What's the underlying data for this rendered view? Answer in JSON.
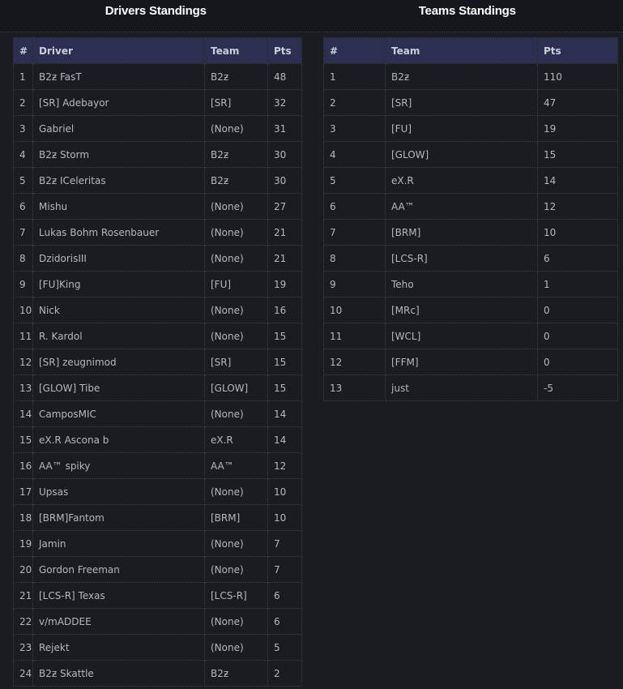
{
  "titles": {
    "drivers": "Drivers Standings",
    "teams": "Teams Standings"
  },
  "colors": {
    "page_background": "#1b1c22",
    "titlebar_background": "#16171c",
    "table_header_background": "#2b3053",
    "border_dotted": "#3d3e45",
    "title_text": "#ffffff",
    "cell_text": "#b6b8bc"
  },
  "drivers_table": {
    "columns": [
      "#",
      "Driver",
      "Team",
      "Pts"
    ],
    "rows": [
      [
        "1",
        "B2ƶ FasT",
        "B2ƶ",
        "48"
      ],
      [
        "2",
        "[SR] Adebayor",
        "[SR]",
        "32"
      ],
      [
        "3",
        "Gabriel",
        "(None)",
        "31"
      ],
      [
        "4",
        "B2ƶ Storm",
        "B2ƶ",
        "30"
      ],
      [
        "5",
        "B2ƶ ICeleritas",
        "B2ƶ",
        "30"
      ],
      [
        "6",
        "Mishu",
        "(None)",
        "27"
      ],
      [
        "7",
        "Lukas Bohm Rosenbauer",
        "(None)",
        "21"
      ],
      [
        "8",
        "DzidorisIII",
        "(None)",
        "21"
      ],
      [
        "9",
        "[FU]King",
        "[FU]",
        "19"
      ],
      [
        "10",
        "Nick",
        "(None)",
        "16"
      ],
      [
        "11",
        "R. Kardol",
        "(None)",
        "15"
      ],
      [
        "12",
        "[SR] zeugnimod",
        "[SR]",
        "15"
      ],
      [
        "13",
        "[GLOW] Tibe",
        "[GLOW]",
        "15"
      ],
      [
        "14",
        "CamposMIC",
        "(None)",
        "14"
      ],
      [
        "15",
        "eX.R Ascona b",
        "eX.R",
        "14"
      ],
      [
        "16",
        "AA™ spiky",
        "AA™",
        "12"
      ],
      [
        "17",
        "Upsas",
        "(None)",
        "10"
      ],
      [
        "18",
        "[BRM]Fantom",
        "[BRM]",
        "10"
      ],
      [
        "19",
        "Jamin",
        "(None)",
        "7"
      ],
      [
        "20",
        "Gordon Freeman",
        "(None)",
        "7"
      ],
      [
        "21",
        "[LCS-R] Texas",
        "[LCS-R]",
        "6"
      ],
      [
        "22",
        "v/mADDEE",
        "(None)",
        "6"
      ],
      [
        "23",
        "Rejekt",
        "(None)",
        "5"
      ],
      [
        "24",
        "B2ƶ Skattle",
        "B2ƶ",
        "2"
      ]
    ]
  },
  "teams_table": {
    "columns": [
      "#",
      "Team",
      "Pts"
    ],
    "rows": [
      [
        "1",
        "B2ƶ",
        "110"
      ],
      [
        "2",
        "[SR]",
        "47"
      ],
      [
        "3",
        "[FU]",
        "19"
      ],
      [
        "4",
        "[GLOW]",
        "15"
      ],
      [
        "5",
        "eX.R",
        "14"
      ],
      [
        "6",
        "AA™",
        "12"
      ],
      [
        "7",
        "[BRM]",
        "10"
      ],
      [
        "8",
        "[LCS-R]",
        "6"
      ],
      [
        "9",
        "Teho",
        "1"
      ],
      [
        "10",
        "[MRc]",
        "0"
      ],
      [
        "11",
        "[WCL]",
        "0"
      ],
      [
        "12",
        "[FFM]",
        "0"
      ],
      [
        "13",
        "just",
        "-5"
      ]
    ]
  }
}
